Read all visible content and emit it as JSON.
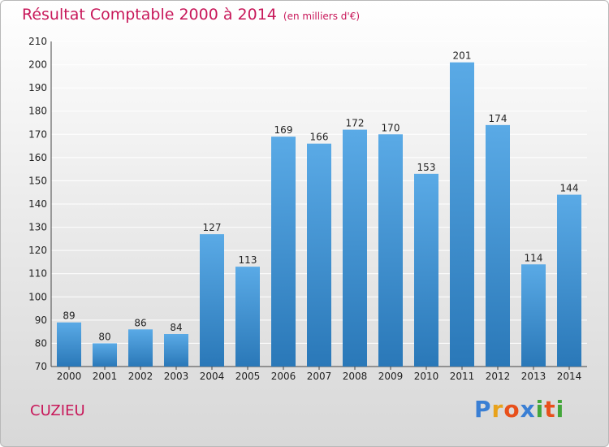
{
  "title": "Résultat Comptable 2000 à 2014",
  "subtitle": "(en milliers d'€)",
  "city": "CUZIEU",
  "logo": {
    "letters": [
      "P",
      "r",
      "o",
      "x",
      "i",
      "t",
      "i"
    ],
    "colors": [
      "#3a7fd4",
      "#e8a21b",
      "#e8501b",
      "#3a7fd4",
      "#43a63a",
      "#e8501b",
      "#43a63a"
    ]
  },
  "colors": {
    "bar_top": "#5aaae6",
    "bar_bottom": "#2a78b8",
    "accent": "#c8185a"
  },
  "chart_data": {
    "type": "bar",
    "title": "Résultat Comptable 2000 à 2014",
    "xlabel": "",
    "ylabel": "",
    "ylim": [
      70,
      210
    ],
    "yticks": [
      70,
      80,
      90,
      100,
      110,
      120,
      130,
      140,
      150,
      160,
      170,
      180,
      190,
      200,
      210
    ],
    "grid": true,
    "categories": [
      "2000",
      "2001",
      "2002",
      "2003",
      "2004",
      "2005",
      "2006",
      "2007",
      "2008",
      "2009",
      "2010",
      "2011",
      "2012",
      "2013",
      "2014"
    ],
    "values": [
      89,
      80,
      86,
      84,
      127,
      113,
      169,
      166,
      172,
      170,
      153,
      201,
      174,
      114,
      144
    ]
  }
}
